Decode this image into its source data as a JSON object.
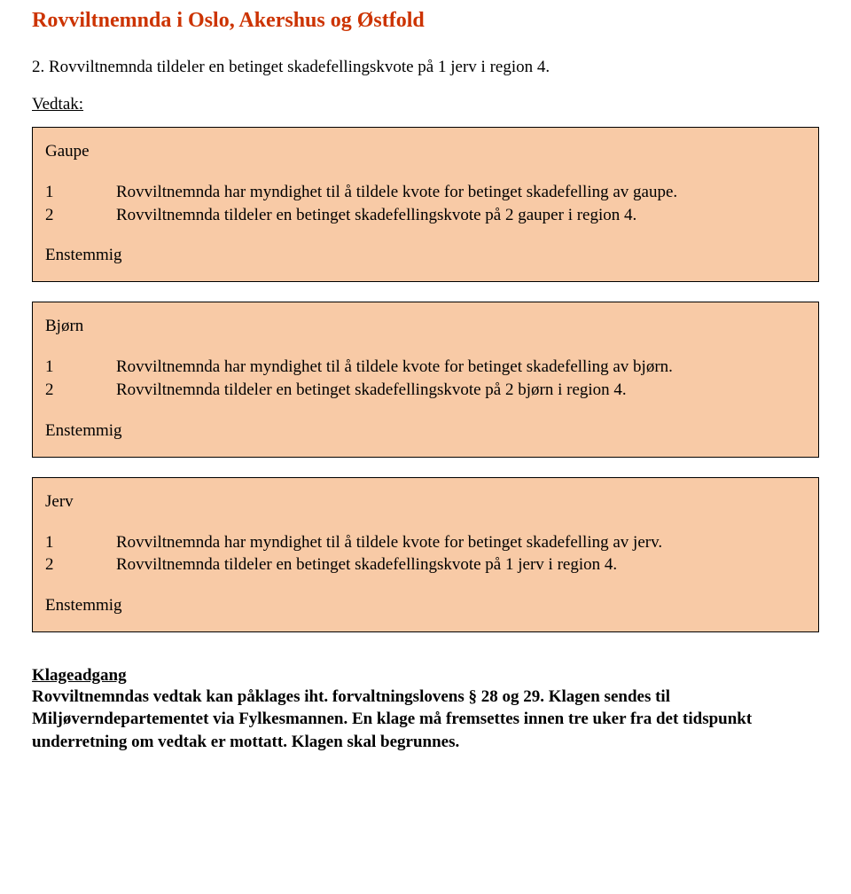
{
  "colors": {
    "title": "#cc3300",
    "box_bg": "#f8caa6",
    "box_border": "#000000",
    "text": "#000000",
    "page_bg": "#ffffff"
  },
  "typography": {
    "title_fontsize": 24,
    "body_fontsize": 19,
    "font_family": "Times New Roman"
  },
  "header": {
    "title": "Rovviltnemnda i Oslo, Akershus og Østfold"
  },
  "intro": "2. Rovviltnemnda tildeler en betinget skadefellingskvote på 1 jerv i region 4.",
  "vedtak_label": "Vedtak:",
  "boxes": [
    {
      "heading": "Gaupe",
      "rows": [
        {
          "n": "1",
          "text": "Rovviltnemnda har myndighet til å tildele kvote for betinget skadefelling av gaupe."
        },
        {
          "n": "2",
          "text": "Rovviltnemnda tildeler en betinget skadefellingskvote på 2 gauper i region 4."
        }
      ],
      "footer": "Enstemmig"
    },
    {
      "heading": "Bjørn",
      "rows": [
        {
          "n": "1",
          "text": "Rovviltnemnda har myndighet til å tildele kvote for betinget skadefelling av bjørn."
        },
        {
          "n": "2",
          "text": "Rovviltnemnda tildeler en betinget skadefellingskvote på 2 bjørn i region 4."
        }
      ],
      "footer": "Enstemmig"
    },
    {
      "heading": "Jerv",
      "rows": [
        {
          "n": "1",
          "text": "Rovviltnemnda har myndighet til å tildele kvote for betinget skadefelling av jerv."
        },
        {
          "n": "2",
          "text": "Rovviltnemnda tildeler en betinget skadefellingskvote på 1 jerv i region 4."
        }
      ],
      "footer": "Enstemmig"
    }
  ],
  "klage": {
    "heading": "Klageadgang",
    "body": "Rovviltnemndas vedtak kan påklages iht. forvaltningslovens § 28 og 29. Klagen sendes til Miljøverndepartementet via Fylkesmannen. En klage må fremsettes innen tre uker fra det tidspunkt underretning om vedtak er mottatt. Klagen skal begrunnes."
  }
}
